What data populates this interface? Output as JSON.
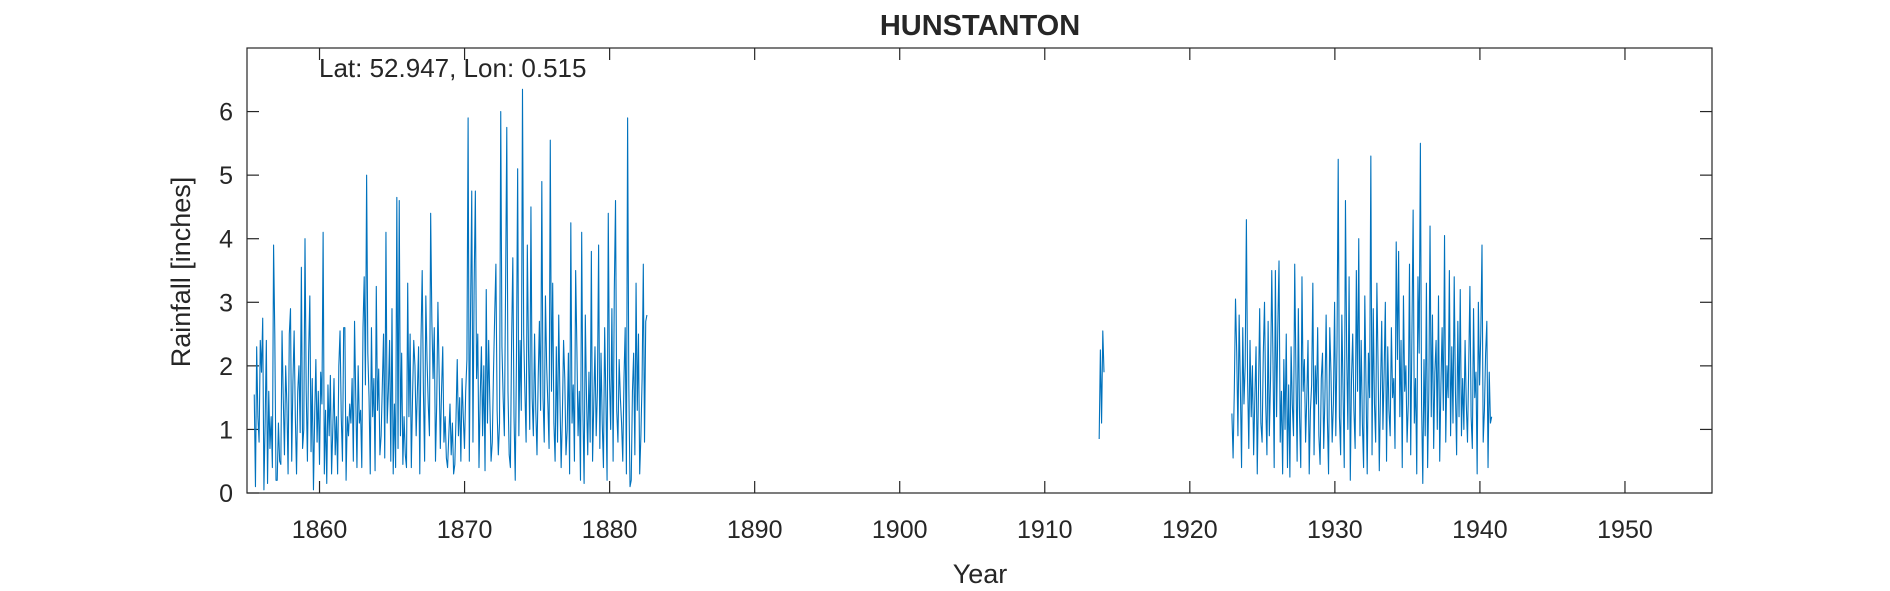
{
  "chart_data": {
    "type": "line",
    "title": "HUNSTANTON",
    "annotation": "Lat: 52.947, Lon: 0.515",
    "xlabel": "Year",
    "ylabel": "Rainfall [inches]",
    "xlim": [
      1855.0,
      1956.0
    ],
    "ylim": [
      0,
      7.0
    ],
    "xticks": [
      1860,
      1870,
      1880,
      1890,
      1900,
      1910,
      1920,
      1930,
      1940,
      1950
    ],
    "yticks": [
      0,
      1,
      2,
      3,
      4,
      5,
      6
    ],
    "grid": false,
    "box": true,
    "line_color": "#0072BD",
    "series": [
      {
        "name": "",
        "segments": [
          {
            "x_start": 1855.5,
            "step": 0.0833,
            "values": [
              1.55,
              0.1,
              2.3,
              1.2,
              0.8,
              2.4,
              1.9,
              2.75,
              0.05,
              1.1,
              2.4,
              0.15,
              1.6,
              0.7,
              1.2,
              0.4,
              3.9,
              2.5,
              0.2,
              0.2,
              1.1,
              0.5,
              0.45,
              2.55,
              1.5,
              0.6,
              2.0,
              1.4,
              0.3,
              2.5,
              2.9,
              0.5,
              1.75,
              2.55,
              1.2,
              0.3,
              1.6,
              2.0,
              0.95,
              3.55,
              0.7,
              1.0,
              4.0,
              1.6,
              0.5,
              2.2,
              3.1,
              0.65,
              1.8,
              0.05,
              1.2,
              2.1,
              0.8,
              1.6,
              0.45,
              1.9,
              1.4,
              4.1,
              0.3,
              1.3,
              0.15,
              1.7,
              0.9,
              1.85,
              0.3,
              1.0,
              1.8,
              0.6,
              1.2,
              0.3,
              2.0,
              2.55,
              1.2,
              0.5,
              2.6,
              2.6,
              0.2,
              1.2,
              0.9,
              1.4,
              1.1,
              1.8,
              0.5,
              2.7,
              1.5,
              0.4,
              2.0,
              1.1,
              1.3,
              0.4,
              2.6,
              3.4,
              1.7,
              5.0,
              2.2,
              1.5,
              0.3,
              2.6,
              1.2,
              1.8,
              0.35,
              3.25,
              1.3,
              1.95,
              0.6,
              0.9,
              1.7,
              2.5,
              0.55,
              4.1,
              1.1,
              1.6,
              2.4,
              0.5,
              2.9,
              0.3,
              1.4,
              0.4,
              4.65,
              0.7,
              4.6,
              0.9,
              2.2,
              0.45,
              1.2,
              0.6,
              0.4,
              3.3,
              1.2,
              2.5,
              0.4,
              1.5,
              2.4,
              2.0,
              0.9,
              1.6,
              2.3,
              0.3,
              2.4,
              3.5,
              1.6,
              0.5,
              3.1,
              2.1,
              1.4,
              0.9,
              4.4,
              2.7,
              1.8,
              2.6,
              0.5,
              1.4,
              3.0,
              1.9,
              0.7,
              1.6,
              2.3,
              0.8,
              1.2,
              0.55,
              0.4,
              0.9,
              1.4,
              0.6,
              1.1,
              0.3,
              0.45,
              1.2,
              2.1,
              0.9,
              1.5,
              0.5,
              1.8,
              1.2,
              0.7,
              1.6,
              2.1,
              5.9,
              0.5,
              2.8,
              4.75,
              0.8,
              3.3,
              4.75,
              1.8,
              2.5,
              0.4,
              1.5,
              2.3,
              0.9,
              2.0,
              0.35,
              3.2,
              1.1,
              2.4,
              1.4,
              0.5,
              0.8,
              1.9,
              2.8,
              3.6,
              1.3,
              0.6,
              1.1,
              6.0,
              2.3,
              1.5,
              0.9,
              3.2,
              5.75,
              1.6,
              0.6,
              0.4,
              2.4,
              3.7,
              1.2,
              0.2,
              2.1,
              5.1,
              0.9,
              2.4,
              1.3,
              6.35,
              2.5,
              1.6,
              0.8,
              3.9,
              2.2,
              1.0,
              4.5,
              1.5,
              0.9,
              2.5,
              1.3,
              0.6,
              1.8,
              2.7,
              1.3,
              4.9,
              1.5,
              0.8,
              3.1,
              2.0,
              1.4,
              0.7,
              5.55,
              1.6,
              3.3,
              1.1,
              0.5,
              2.3,
              0.8,
              2.8,
              1.5,
              0.4,
              1.2,
              2.4,
              1.8,
              0.6,
              1.0,
              2.2,
              0.3,
              4.25,
              1.1,
              1.7,
              0.5,
              3.5,
              2.3,
              0.9,
              1.6,
              0.2,
              4.1,
              1.3,
              0.15,
              2.8,
              1.5,
              0.6,
              1.9,
              0.8,
              3.8,
              0.5,
              1.4,
              2.3,
              0.9,
              1.6,
              3.9,
              0.7,
              2.2,
              1.1,
              0.4,
              2.6,
              1.5,
              0.2,
              4.4,
              1.8,
              1.0,
              2.9,
              0.5,
              3.2,
              4.6,
              1.3,
              0.8,
              2.1,
              1.5,
              1.1,
              0.5,
              1.8,
              2.6,
              0.3,
              5.9,
              1.7,
              0.1,
              0.2,
              1.6,
              2.2,
              0.6,
              3.3,
              1.3,
              2.5,
              0.3,
              0.9,
              1.8,
              3.6,
              0.8,
              2.7,
              2.8
            ]
          },
          {
            "x_start": 1913.75,
            "step": 0.0833,
            "values": [
              0.85,
              2.25,
              1.1,
              2.55,
              1.9
            ]
          },
          {
            "x_start": 1922.9,
            "step": 0.0833,
            "values": [
              1.25,
              0.55,
              1.6,
              3.05,
              2.2,
              0.9,
              2.8,
              1.7,
              0.4,
              2.6,
              1.4,
              2.0,
              4.3,
              1.8,
              0.7,
              2.4,
              1.2,
              2.0,
              0.6,
              1.5,
              2.3,
              0.3,
              1.6,
              2.9,
              1.1,
              0.8,
              2.2,
              3.0,
              1.4,
              0.6,
              2.7,
              0.9,
              1.8,
              3.5,
              2.1,
              0.4,
              3.5,
              1.2,
              2.6,
              3.65,
              0.8,
              1.6,
              0.3,
              2.1,
              1.0,
              2.5,
              0.4,
              1.7,
              0.25,
              2.3,
              1.4,
              0.9,
              3.6,
              1.9,
              0.5,
              2.9,
              1.2,
              0.4,
              3.4,
              1.6,
              2.1,
              0.8,
              1.5,
              2.4,
              0.3,
              1.3,
              1.7,
              3.3,
              0.6,
              2.0,
              1.4,
              2.6,
              0.9,
              0.45,
              1.8,
              2.2,
              0.7,
              1.5,
              2.8,
              1.2,
              0.3,
              2.6,
              1.9,
              0.8,
              1.4,
              3.0,
              0.9,
              2.3,
              5.25,
              1.2,
              0.6,
              2.8,
              1.6,
              0.4,
              4.6,
              2.2,
              1.0,
              3.4,
              0.2,
              1.8,
              2.5,
              1.3,
              0.7,
              3.5,
              1.6,
              4.0,
              0.9,
              2.4,
              1.1,
              0.4,
              3.1,
              1.7,
              0.3,
              2.2,
              1.5,
              5.3,
              0.6,
              2.9,
              1.4,
              0.8,
              3.3,
              2.0,
              0.35,
              1.6,
              2.7,
              1.0,
              1.9,
              3.0,
              0.5,
              2.3,
              1.3,
              0.9,
              2.6,
              1.5,
              1.8,
              0.7,
              3.95,
              2.1,
              3.8,
              1.2,
              2.4,
              0.4,
              3.1,
              1.6,
              2.0,
              0.8,
              1.4,
              3.6,
              0.6,
              2.5,
              4.45,
              1.1,
              1.8,
              0.3,
              3.4,
              2.2,
              5.5,
              1.4,
              0.15,
              2.1,
              0.9,
              3.3,
              0.4,
              1.6,
              4.2,
              1.2,
              2.8,
              0.7,
              1.9,
              2.4,
              1.0,
              3.1,
              0.5,
              1.7,
              2.6,
              1.3,
              4.05,
              0.8,
              2.0,
              1.5,
              3.5,
              0.9,
              2.3,
              1.1,
              3.4,
              1.6,
              0.6,
              2.7,
              1.2,
              3.2,
              0.9,
              1.8,
              1.0,
              2.4,
              1.4,
              0.8,
              2.0,
              3.25,
              1.2,
              0.7,
              2.9,
              1.5,
              1.9,
              0.3,
              3.0,
              1.7,
              2.5,
              3.9,
              0.8,
              1.3,
              2.2,
              2.7,
              0.4,
              1.9,
              1.1,
              1.2
            ]
          }
        ]
      }
    ]
  }
}
